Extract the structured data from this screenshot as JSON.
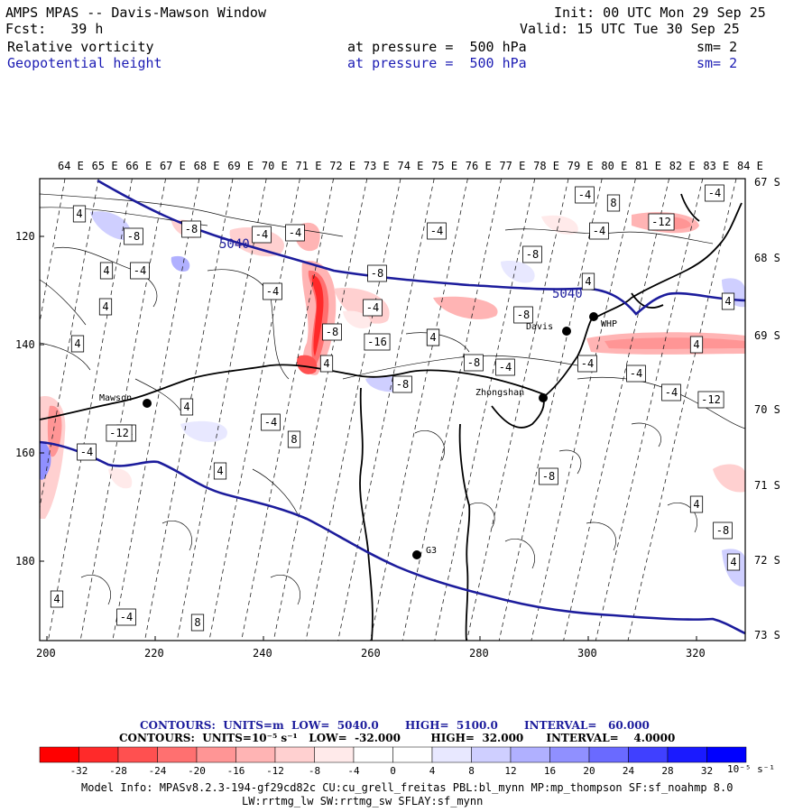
{
  "header": {
    "model_line": "AMPS MPAS -- Davis-Mawson Window",
    "init_line": "Init: 00 UTC Mon 29 Sep 25",
    "fcst_line": "Fcst:   39 h",
    "valid_line": "Valid: 15 UTC Tue 30 Sep 25",
    "field1": {
      "name": "Relative vorticity",
      "pressure": "at pressure =  500 hPa",
      "sm": "sm= 2"
    },
    "field2": {
      "name": "Geopotential height",
      "pressure": "at pressure =  500 hPa",
      "sm": "sm= 2"
    }
  },
  "colors": {
    "blue_text": "#1c1cb4",
    "height_contour": "#1c1c9c",
    "coast": "#000000"
  },
  "map": {
    "lon_labels": [
      "64 E",
      "65 E",
      "66 E",
      "67 E",
      "68 E",
      "69 E",
      "70 E",
      "71 E",
      "72 E",
      "73 E",
      "74 E",
      "75 E",
      "76 E",
      "77 E",
      "78 E",
      "79 E",
      "80 E",
      "81 E",
      "82 E",
      "83 E",
      "84 E"
    ],
    "lat_labels": [
      "67 S",
      "68 S",
      "69 S",
      "70 S",
      "71 S",
      "72 S",
      "73 S"
    ],
    "x_ticks": [
      "200",
      "220",
      "240",
      "260",
      "280",
      "300",
      "320"
    ],
    "y_ticks": [
      "120",
      "140",
      "160",
      "180"
    ],
    "height_labels": [
      "5040",
      "5040"
    ],
    "stations": [
      "Mawson",
      "Davis",
      "WHP",
      "Zhongshan",
      "G3"
    ],
    "vort_labels": [
      "4",
      "-8",
      "-8",
      "-4",
      "-4",
      "4",
      "-4",
      "-4",
      "-8",
      "8",
      "-4",
      "-12",
      "4",
      "-4",
      "-8",
      "-4",
      "4",
      "-4",
      "4",
      "-8",
      "4",
      "-8",
      "4",
      "-16",
      "-8",
      "-4",
      "4",
      "-8",
      "-4",
      "-4",
      "-4",
      "-12",
      "4",
      "-4",
      "-12",
      "4",
      "-4",
      "8",
      "-4",
      "4",
      "-8",
      "4",
      "-8",
      "4",
      "4",
      "-4",
      "8",
      "4",
      "-4",
      "4",
      "-8",
      "4",
      "8",
      "-4",
      "4",
      "4",
      "4",
      "-8",
      "-4",
      "8",
      "4"
    ]
  },
  "colorbar": {
    "contours_line1": "CONTOURS:  UNITS=m  LOW=  5040.0       HIGH=  5100.0       INTERVAL=   60.000",
    "contours_line2": "CONTOURS:  UNITS=10⁻⁵ s⁻¹   LOW=  -32.000        HIGH=  32.000      INTERVAL=    4.0000",
    "ticks": [
      "-32",
      "-28",
      "-24",
      "-20",
      "-16",
      "-12",
      "-8",
      "-4",
      "0",
      "4",
      "8",
      "12",
      "16",
      "20",
      "24",
      "28",
      "32"
    ],
    "units": "10⁻⁵ s⁻¹",
    "colors": [
      "#ff0000",
      "#ff2a2a",
      "#ff5050",
      "#ff7070",
      "#ff9595",
      "#ffb4b4",
      "#ffd0d0",
      "#ffeaea",
      "#ffffff",
      "#ffffff",
      "#e8e8ff",
      "#cfcfff",
      "#b0b0ff",
      "#9090ff",
      "#6a6aff",
      "#4040ff",
      "#1a1aff",
      "#0000ff"
    ]
  },
  "model_info": {
    "line1": "Model Info: MPASv8.2.3-194-gf29cd82c CU:cu_grell_freitas PBL:bl_mynn MP:mp_thompson SF:sf_noahmp 8.0",
    "line2": "LW:rrtmg_lw SW:rrtmg_sw SFLAY:sf_mynn"
  }
}
